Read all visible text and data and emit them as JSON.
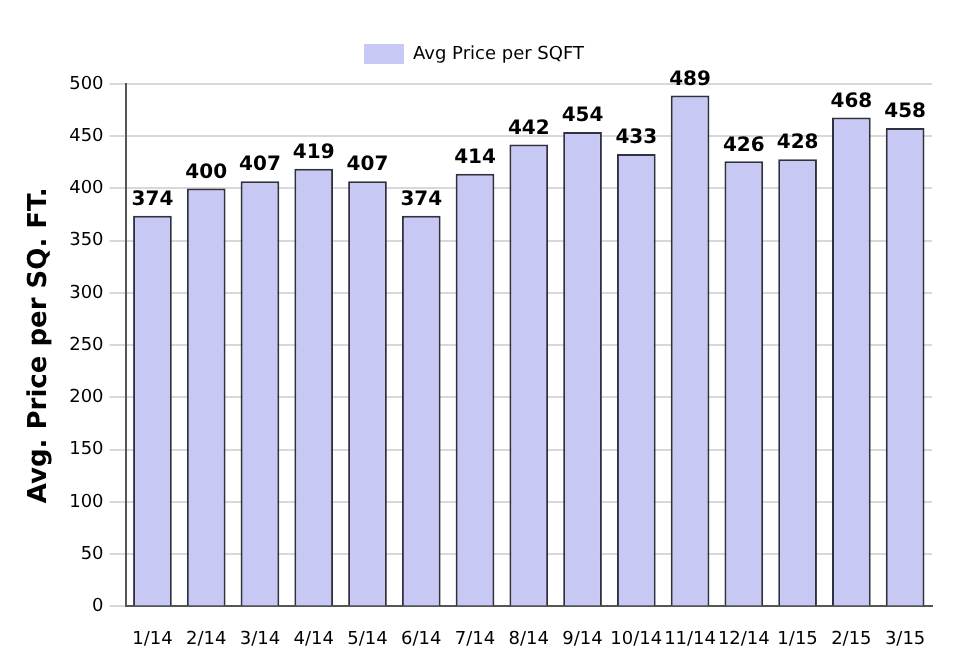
{
  "chart_data": {
    "type": "bar",
    "ylabel": "Avg. Price per SQ. FT.",
    "categories": [
      "1/14",
      "2/14",
      "3/14",
      "4/14",
      "5/14",
      "6/14",
      "7/14",
      "8/14",
      "9/14",
      "10/14",
      "11/14",
      "12/14",
      "1/15",
      "2/15",
      "3/15"
    ],
    "series": [
      {
        "name": "Avg Price per SQFT",
        "color": "#c8c8f4",
        "values": [
          374,
          400,
          407,
          419,
          407,
          374,
          414,
          442,
          454,
          433,
          489,
          426,
          428,
          468,
          458
        ]
      }
    ],
    "ylim": [
      0,
      500
    ],
    "yticks": [
      0,
      50,
      100,
      150,
      200,
      250,
      300,
      350,
      400,
      450,
      500
    ],
    "grid": "y",
    "legend": "top",
    "data_labels": true
  }
}
